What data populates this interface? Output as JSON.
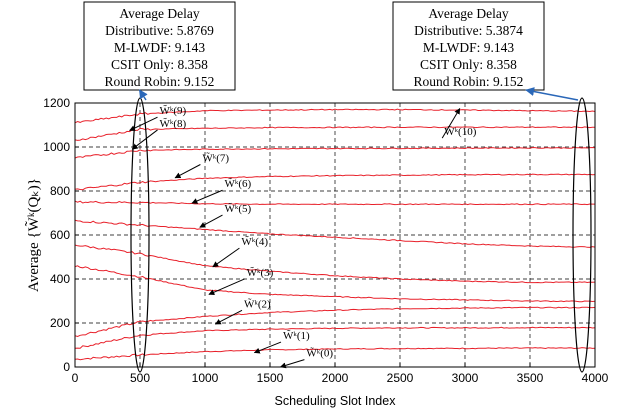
{
  "chart_data": {
    "type": "line",
    "xlabel": "Scheduling Slot Index",
    "ylabel": "Average {W̃ᵏ(Qₖ)}",
    "xlim": [
      0,
      4000
    ],
    "ylim": [
      0,
      1200
    ],
    "xticks": [
      0,
      500,
      1000,
      1500,
      2000,
      2500,
      3000,
      3500,
      4000
    ],
    "yticks": [
      0,
      200,
      400,
      600,
      800,
      1000,
      1200
    ],
    "grid": true,
    "line_color": "#e8202a",
    "series": [
      {
        "name": "W̃ᵏ(0)",
        "x": [
          0,
          500,
          1000,
          1500,
          2000,
          2500,
          3000,
          3500,
          4000
        ],
        "values": [
          35,
          55,
          70,
          78,
          82,
          84,
          85,
          86,
          86
        ]
      },
      {
        "name": "W̃ᵏ(1)",
        "x": [
          0,
          500,
          1000,
          1500,
          2000,
          2500,
          3000,
          3500,
          4000
        ],
        "values": [
          85,
          145,
          165,
          172,
          176,
          178,
          178,
          179,
          179
        ]
      },
      {
        "name": "W̃ᵏ(2)",
        "x": [
          0,
          500,
          1000,
          1500,
          2000,
          2500,
          3000,
          3500,
          4000
        ],
        "values": [
          140,
          205,
          230,
          248,
          258,
          265,
          268,
          270,
          270
        ]
      },
      {
        "name": "W̃ᵏ(3)",
        "x": [
          0,
          500,
          1000,
          1500,
          2000,
          2500,
          3000,
          3500,
          4000
        ],
        "values": [
          460,
          410,
          350,
          330,
          320,
          310,
          305,
          300,
          298
        ]
      },
      {
        "name": "W̃ᵏ(4)",
        "x": [
          0,
          500,
          1000,
          1500,
          2000,
          2500,
          3000,
          3500,
          4000
        ],
        "values": [
          555,
          515,
          460,
          435,
          415,
          400,
          390,
          385,
          385
        ]
      },
      {
        "name": "W̃ᵏ(5)",
        "x": [
          0,
          500,
          1000,
          1500,
          2000,
          2500,
          3000,
          3500,
          4000
        ],
        "values": [
          665,
          645,
          625,
          605,
          590,
          575,
          560,
          550,
          545
        ]
      },
      {
        "name": "W̃ᵏ(6)",
        "x": [
          0,
          500,
          1000,
          1500,
          2000,
          2500,
          3000,
          3500,
          4000
        ],
        "values": [
          750,
          748,
          742,
          740,
          740,
          740,
          740,
          740,
          740
        ]
      },
      {
        "name": "W̃ᵏ(7)",
        "x": [
          0,
          500,
          1000,
          1500,
          2000,
          2500,
          3000,
          3500,
          4000
        ],
        "values": [
          805,
          840,
          858,
          866,
          870,
          872,
          874,
          875,
          875
        ]
      },
      {
        "name": "W̃ᵏ(8)",
        "x": [
          0,
          500,
          1000,
          1500,
          2000,
          2500,
          3000,
          3500,
          4000
        ],
        "values": [
          950,
          985,
          990,
          992,
          993,
          994,
          995,
          996,
          996
        ]
      },
      {
        "name": "W̃ᵏ(9)",
        "x": [
          0,
          500,
          1000,
          1500,
          2000,
          2500,
          3000,
          3500,
          4000
        ],
        "values": [
          1030,
          1080,
          1085,
          1088,
          1089,
          1090,
          1090,
          1090,
          1090
        ]
      },
      {
        "name": "W̃ᵏ(10)",
        "x": [
          0,
          500,
          1000,
          1500,
          2000,
          2500,
          3000,
          3500,
          4000
        ],
        "values": [
          1110,
          1150,
          1165,
          1168,
          1170,
          1170,
          1168,
          1165,
          1162
        ]
      }
    ],
    "annotations": [
      {
        "label": "W̃ᵏ(9)",
        "text_x": 650,
        "text_y": 1140,
        "arrow_x": 420,
        "arrow_y": 1075
      },
      {
        "label": "W̃ᵏ(8)",
        "text_x": 650,
        "text_y": 1082,
        "arrow_x": 440,
        "arrow_y": 990
      },
      {
        "label": "W̃ᵏ(7)",
        "text_x": 980,
        "text_y": 925,
        "arrow_x": 770,
        "arrow_y": 860
      },
      {
        "label": "W̃ᵏ(6)",
        "text_x": 1150,
        "text_y": 808,
        "arrow_x": 900,
        "arrow_y": 745
      },
      {
        "label": "W̃ᵏ(5)",
        "text_x": 1150,
        "text_y": 695,
        "arrow_x": 960,
        "arrow_y": 635
      },
      {
        "label": "W̃ᵏ(4)",
        "text_x": 1280,
        "text_y": 545,
        "arrow_x": 1060,
        "arrow_y": 455
      },
      {
        "label": "W̃ᵏ(3)",
        "text_x": 1320,
        "text_y": 405,
        "arrow_x": 1030,
        "arrow_y": 330
      },
      {
        "label": "W̃ᵏ(2)",
        "text_x": 1300,
        "text_y": 262,
        "arrow_x": 1080,
        "arrow_y": 195
      },
      {
        "label": "W̃ᵏ(1)",
        "text_x": 1600,
        "text_y": 118,
        "arrow_x": 1380,
        "arrow_y": 65
      },
      {
        "label": "W̃ᵏ(0)",
        "text_x": 1780,
        "text_y": 38,
        "arrow_x": 1580,
        "arrow_y": 0
      },
      {
        "label": "W̃ᵏ(10)",
        "text_x": 2840,
        "text_y": 1045,
        "arrow_x": 2960,
        "arrow_y": 1175
      }
    ],
    "delay_boxes": [
      {
        "title": "Average Delay",
        "lines": [
          "Distributive: 5.8769",
          "M-LWDF: 9.143",
          "CSIT Only: 8.358",
          "Round Robin: 9.152"
        ],
        "slot": 500
      },
      {
        "title": "Average Delay",
        "lines": [
          "Distributive: 5.3874",
          "M-LWDF: 9.143",
          "CSIT Only: 8.358",
          "Round Robin: 9.152"
        ],
        "slot": 3900
      }
    ]
  }
}
